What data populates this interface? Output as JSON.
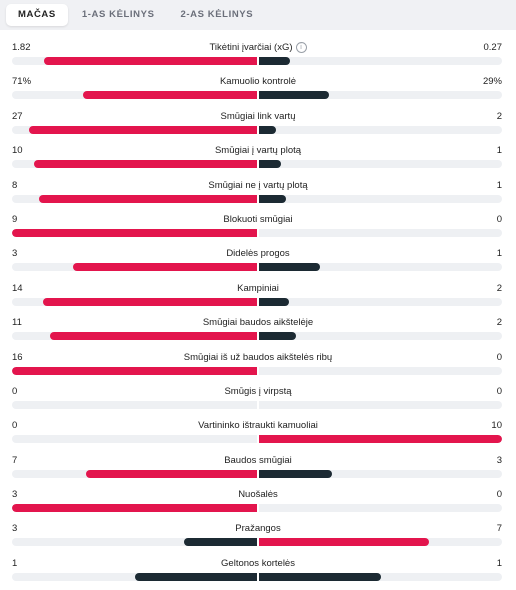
{
  "tabs": [
    {
      "label": "MAČAS",
      "active": true
    },
    {
      "label": "1-AS KĖLINYS",
      "active": false
    },
    {
      "label": "2-AS KĖLINYS",
      "active": false
    }
  ],
  "colors": {
    "winner": "#e3154d",
    "loser": "#1c2a33",
    "track": "#eef0f3"
  },
  "info_icon": "info-icon",
  "stats": [
    {
      "label": "Tikėtini įvarčiai (xG)",
      "home": "1.82",
      "away": "0.27",
      "home_val": 1.82,
      "away_val": 0.27,
      "info": true
    },
    {
      "label": "Kamuolio kontrolė",
      "home": "71%",
      "away": "29%",
      "home_val": 71,
      "away_val": 29
    },
    {
      "label": "Smūgiai link vartų",
      "home": "27",
      "away": "2",
      "home_val": 27,
      "away_val": 2
    },
    {
      "label": "Smūgiai į vartų plotą",
      "home": "10",
      "away": "1",
      "home_val": 10,
      "away_val": 1
    },
    {
      "label": "Smūgiai ne į vartų plotą",
      "home": "8",
      "away": "1",
      "home_val": 8,
      "away_val": 1
    },
    {
      "label": "Blokuoti smūgiai",
      "home": "9",
      "away": "0",
      "home_val": 9,
      "away_val": 0
    },
    {
      "label": "Didelės progos",
      "home": "3",
      "away": "1",
      "home_val": 3,
      "away_val": 1
    },
    {
      "label": "Kampiniai",
      "home": "14",
      "away": "2",
      "home_val": 14,
      "away_val": 2
    },
    {
      "label": "Smūgiai baudos aikštelėje",
      "home": "11",
      "away": "2",
      "home_val": 11,
      "away_val": 2
    },
    {
      "label": "Smūgiai iš už baudos aikštelės ribų",
      "home": "16",
      "away": "0",
      "home_val": 16,
      "away_val": 0
    },
    {
      "label": "Smūgis į virpstą",
      "home": "0",
      "away": "0",
      "home_val": 0,
      "away_val": 0
    },
    {
      "label": "Vartininko ištraukti kamuoliai",
      "home": "0",
      "away": "10",
      "home_val": 0,
      "away_val": 10
    },
    {
      "label": "Baudos smūgiai",
      "home": "7",
      "away": "3",
      "home_val": 7,
      "away_val": 3
    },
    {
      "label": "Nuošalės",
      "home": "3",
      "away": "0",
      "home_val": 3,
      "away_val": 0
    },
    {
      "label": "Pražangos",
      "home": "3",
      "away": "7",
      "home_val": 3,
      "away_val": 7
    },
    {
      "label": "Geltonos kortelės",
      "home": "1",
      "away": "1",
      "home_val": 1,
      "away_val": 1
    }
  ]
}
